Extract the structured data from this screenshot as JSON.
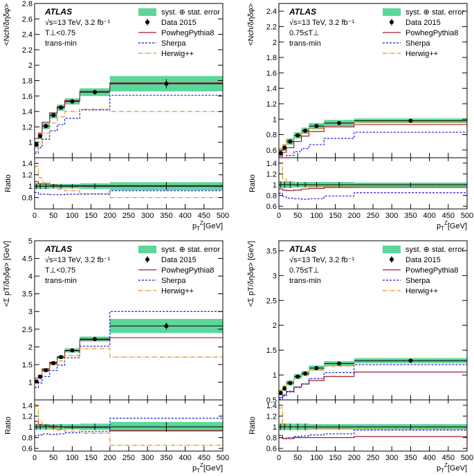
{
  "experiment": "ATLAS",
  "legend": {
    "band": "syst. ⊕ stat. error",
    "data": "Data 2015",
    "powheg": "PowhegPythia8",
    "sherpa": "Sherpa",
    "herwig": "Herwig++"
  },
  "energy_label": "√s=13 TeV, 3.2 fb⁻¹",
  "region_label": "trans-min",
  "ratio_ylabel": "Ratio",
  "colors": {
    "band": "#5cd69a",
    "data": "#000000",
    "powheg": "#a3192a",
    "sherpa": "#1a1ad6",
    "herwig": "#e08a1e"
  },
  "chart_data": [
    {
      "type": "line",
      "ylabel": "<N_ch/δηδφ>",
      "xlabel": "p_T^Z[GeV]",
      "cut_label": "T⊥<0.75",
      "xlim": [
        0,
        500
      ],
      "ylim": [
        0.8,
        2.8
      ],
      "yticks": [
        "1",
        "1.2",
        "1.4",
        "1.6",
        "1.8",
        "2",
        "2.2",
        "2.4",
        "2.6",
        "2.8"
      ],
      "ratio_ylim": [
        0.6,
        1.5
      ],
      "ratio_yticks": [
        "0.8",
        "1",
        "1.2",
        "1.4"
      ],
      "xticks": [
        "0",
        "50",
        "100",
        "150",
        "200",
        "250",
        "300",
        "350",
        "400",
        "450",
        "500"
      ],
      "bin_edges": [
        0,
        10,
        20,
        40,
        60,
        80,
        120,
        200,
        500
      ],
      "bin_centers": [
        5,
        15,
        30,
        50,
        70,
        100,
        160,
        350
      ],
      "data": [
        0.97,
        1.08,
        1.21,
        1.35,
        1.45,
        1.53,
        1.65,
        1.76
      ],
      "band_err": [
        0.04,
        0.04,
        0.04,
        0.04,
        0.04,
        0.04,
        0.05,
        0.1
      ],
      "stat_err": [
        0.02,
        0.02,
        0.02,
        0.02,
        0.02,
        0.03,
        0.03,
        0.06
      ],
      "series": [
        {
          "name": "PowhegPythia8",
          "values": [
            1.05,
            1.12,
            1.26,
            1.38,
            1.46,
            1.54,
            1.66,
            1.77
          ]
        },
        {
          "name": "Sherpa",
          "values": [
            0.86,
            0.93,
            1.04,
            1.15,
            1.23,
            1.31,
            1.42,
            1.61
          ]
        },
        {
          "name": "Herwig++",
          "values": [
            0.88,
            0.98,
            1.12,
            1.25,
            1.33,
            1.4,
            1.43,
            1.4
          ]
        }
      ],
      "ratio_band": [
        0.05,
        0.05,
        0.05,
        0.04,
        0.04,
        0.04,
        0.05,
        0.07
      ],
      "ratio_series": [
        {
          "name": "PowhegPythia8",
          "values": [
            1.08,
            1.04,
            1.04,
            1.02,
            1.01,
            1.01,
            1.01,
            1.01
          ]
        },
        {
          "name": "Sherpa",
          "values": [
            0.89,
            0.86,
            0.86,
            0.85,
            0.85,
            0.86,
            0.86,
            0.92
          ]
        },
        {
          "name": "Herwig++",
          "values": [
            1.35,
            1.15,
            1.07,
            1.0,
            0.95,
            0.92,
            0.87,
            0.8
          ]
        }
      ]
    },
    {
      "type": "line",
      "ylabel": "<N_ch/δηδφ>",
      "xlabel": "p_T^Z[GeV]",
      "cut_label": "0.75≤T⊥",
      "xlim": [
        0,
        500
      ],
      "ylim": [
        0.5,
        2.5
      ],
      "yticks": [
        "0.6",
        "0.8",
        "1",
        "1.2",
        "1.4",
        "1.6",
        "1.8",
        "2",
        "2.2",
        "2.4"
      ],
      "ratio_ylim": [
        0.55,
        1.5
      ],
      "ratio_yticks": [
        "0.6",
        "0.8",
        "1",
        "1.2",
        "1.4"
      ],
      "xticks": [
        "0",
        "50",
        "100",
        "150",
        "200",
        "250",
        "300",
        "350",
        "400",
        "450",
        "500"
      ],
      "bin_edges": [
        0,
        10,
        20,
        40,
        60,
        80,
        120,
        200,
        500
      ],
      "bin_centers": [
        5,
        15,
        30,
        50,
        70,
        100,
        160,
        350
      ],
      "data": [
        0.56,
        0.63,
        0.71,
        0.79,
        0.85,
        0.91,
        0.95,
        0.98
      ],
      "band_err": [
        0.04,
        0.04,
        0.04,
        0.04,
        0.04,
        0.04,
        0.04,
        0.03
      ],
      "stat_err": [
        0.02,
        0.02,
        0.02,
        0.02,
        0.02,
        0.02,
        0.02,
        0.02
      ],
      "series": [
        {
          "name": "PowhegPythia8",
          "values": [
            0.52,
            0.57,
            0.63,
            0.71,
            0.78,
            0.84,
            0.9,
            0.93
          ]
        },
        {
          "name": "Sherpa",
          "values": [
            0.48,
            0.49,
            0.53,
            0.58,
            0.62,
            0.67,
            0.75,
            0.83
          ]
        },
        {
          "name": "Herwig++",
          "values": [
            0.62,
            0.67,
            0.73,
            0.78,
            0.83,
            0.88,
            0.92,
            0.96
          ]
        }
      ],
      "ratio_band": [
        0.06,
        0.06,
        0.06,
        0.05,
        0.05,
        0.05,
        0.05,
        0.04
      ],
      "ratio_series": [
        {
          "name": "PowhegPythia8",
          "values": [
            0.92,
            0.9,
            0.89,
            0.9,
            0.92,
            0.93,
            0.95,
            0.95
          ]
        },
        {
          "name": "Sherpa",
          "values": [
            0.84,
            0.78,
            0.75,
            0.74,
            0.73,
            0.74,
            0.79,
            0.85
          ]
        },
        {
          "name": "Herwig++",
          "values": [
            1.4,
            1.1,
            1.03,
            0.99,
            0.98,
            0.97,
            0.97,
            0.98
          ]
        }
      ]
    },
    {
      "type": "line",
      "ylabel": "<Σ p_T/δηδφ> [GeV]",
      "xlabel": "p_T^Z[GeV]",
      "cut_label": "T⊥<0.75",
      "xlim": [
        0,
        500
      ],
      "ylim": [
        0.5,
        5
      ],
      "yticks": [
        "1",
        "1.5",
        "2",
        "2.5",
        "3",
        "3.5",
        "4",
        "4.5",
        "5"
      ],
      "ratio_ylim": [
        0.55,
        1.5
      ],
      "ratio_yticks": [
        "0.6",
        "0.8",
        "1",
        "1.2",
        "1.4"
      ],
      "xticks": [
        "0",
        "50",
        "100",
        "150",
        "200",
        "250",
        "300",
        "350",
        "400",
        "450",
        "500"
      ],
      "bin_edges": [
        0,
        10,
        20,
        40,
        60,
        80,
        120,
        200,
        500
      ],
      "bin_centers": [
        5,
        15,
        30,
        50,
        70,
        100,
        160,
        350
      ],
      "data": [
        1.02,
        1.15,
        1.34,
        1.54,
        1.71,
        1.9,
        2.22,
        2.59
      ],
      "band_err": [
        0.05,
        0.05,
        0.05,
        0.05,
        0.05,
        0.06,
        0.07,
        0.2
      ],
      "stat_err": [
        0.03,
        0.03,
        0.03,
        0.03,
        0.03,
        0.04,
        0.05,
        0.1
      ],
      "series": [
        {
          "name": "PowhegPythia8",
          "values": [
            1.12,
            1.2,
            1.38,
            1.56,
            1.71,
            1.89,
            2.2,
            2.26
          ]
        },
        {
          "name": "Sherpa",
          "values": [
            0.85,
            0.98,
            1.16,
            1.33,
            1.48,
            1.69,
            2.02,
            3.0
          ]
        },
        {
          "name": "Herwig++",
          "values": [
            1.0,
            1.13,
            1.32,
            1.49,
            1.6,
            1.75,
            1.95,
            1.71
          ]
        }
      ],
      "ratio_band": [
        0.05,
        0.05,
        0.05,
        0.05,
        0.05,
        0.05,
        0.06,
        0.09
      ],
      "ratio_series": [
        {
          "name": "PowhegPythia8",
          "values": [
            1.1,
            1.04,
            1.03,
            1.01,
            1.0,
            0.99,
            0.99,
            0.93
          ]
        },
        {
          "name": "Sherpa",
          "values": [
            0.83,
            0.85,
            0.87,
            0.86,
            0.87,
            0.89,
            0.91,
            1.16
          ]
        },
        {
          "name": "Herwig++",
          "values": [
            1.38,
            1.1,
            1.0,
            0.97,
            0.94,
            0.92,
            0.88,
            0.66
          ]
        }
      ]
    },
    {
      "type": "line",
      "ylabel": "<Σ p_T/δηδφ> [GeV]",
      "xlabel": "p_T^Z[GeV]",
      "cut_label": "0.75≤T⊥",
      "xlim": [
        0,
        500
      ],
      "ylim": [
        0.5,
        3.7
      ],
      "yticks": [
        "0.5",
        "1",
        "1.5",
        "2",
        "2.5",
        "3",
        "3.5"
      ],
      "ratio_ylim": [
        0.55,
        1.5
      ],
      "ratio_yticks": [
        "0.6",
        "0.8",
        "1",
        "1.2",
        "1.4"
      ],
      "xticks": [
        "0",
        "50",
        "100",
        "150",
        "200",
        "250",
        "300",
        "350",
        "400",
        "450",
        "500"
      ],
      "bin_edges": [
        0,
        10,
        20,
        40,
        60,
        80,
        120,
        200,
        500
      ],
      "bin_centers": [
        5,
        15,
        30,
        50,
        70,
        100,
        160,
        350
      ],
      "data": [
        0.64,
        0.73,
        0.84,
        0.97,
        1.03,
        1.14,
        1.23,
        1.29
      ],
      "band_err": [
        0.05,
        0.05,
        0.05,
        0.05,
        0.05,
        0.05,
        0.05,
        0.05
      ],
      "stat_err": [
        0.03,
        0.03,
        0.03,
        0.03,
        0.03,
        0.03,
        0.03,
        0.03
      ],
      "series": [
        {
          "name": "PowhegPythia8",
          "values": [
            0.55,
            0.6,
            0.67,
            0.76,
            0.82,
            0.89,
            0.97,
            1.06
          ]
        },
        {
          "name": "Sherpa",
          "values": [
            0.52,
            0.58,
            0.66,
            0.75,
            0.82,
            0.93,
            1.05,
            1.21
          ]
        },
        {
          "name": "Herwig++",
          "values": [
            0.7,
            0.78,
            0.86,
            0.96,
            1.02,
            1.1,
            1.18,
            1.27
          ]
        }
      ],
      "ratio_band": [
        0.06,
        0.06,
        0.06,
        0.06,
        0.06,
        0.05,
        0.05,
        0.05
      ],
      "ratio_series": [
        {
          "name": "PowhegPythia8",
          "values": [
            0.84,
            0.78,
            0.78,
            0.8,
            0.8,
            0.8,
            0.8,
            0.82
          ]
        },
        {
          "name": "Sherpa",
          "values": [
            0.8,
            0.79,
            0.8,
            0.82,
            0.83,
            0.85,
            0.87,
            0.94
          ]
        },
        {
          "name": "Herwig++",
          "values": [
            1.35,
            1.05,
            1.0,
            0.98,
            0.98,
            0.97,
            0.97,
            0.98
          ]
        }
      ]
    }
  ]
}
